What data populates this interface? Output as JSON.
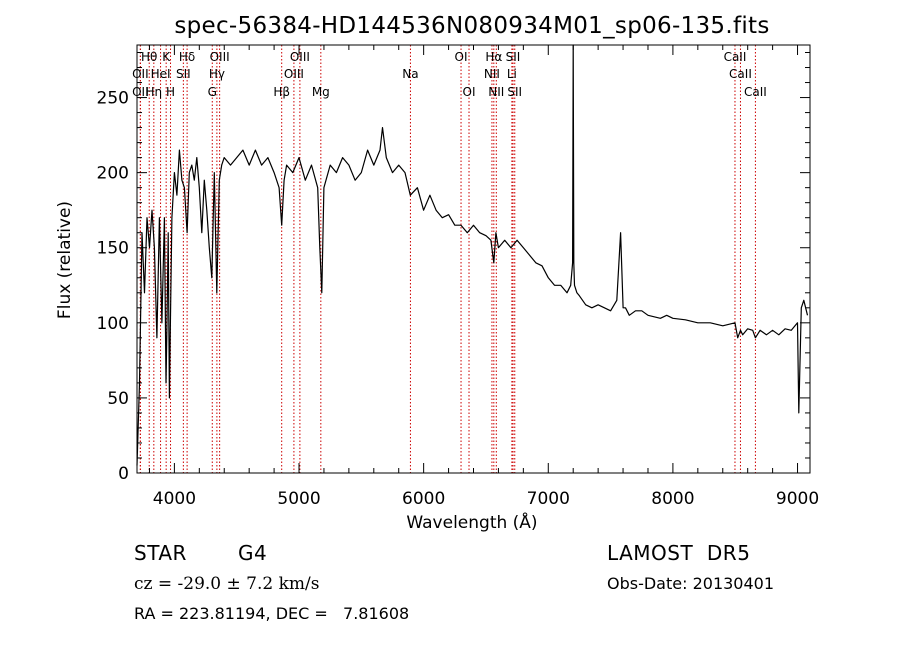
{
  "chart_data": {
    "type": "line",
    "title": "spec-56384-HD144536N080934M01_sp06-135.fits",
    "xlabel": "Wavelength (Å)",
    "ylabel": "Flux (relative)",
    "xlim": [
      3700,
      9100
    ],
    "ylim": [
      0,
      285
    ],
    "x_ticks": [
      4000,
      5000,
      6000,
      7000,
      8000,
      9000
    ],
    "y_ticks": [
      0,
      50,
      100,
      150,
      200,
      250
    ],
    "grid": false,
    "line_color": "#000000",
    "marker_color": "#cc0000",
    "series": [
      {
        "x": [
          3700,
          3720,
          3740,
          3760,
          3780,
          3800,
          3820,
          3840,
          3860,
          3880,
          3900,
          3920,
          3933,
          3940,
          3950,
          3960,
          3968,
          3980,
          4000,
          4020,
          4040,
          4060,
          4080,
          4102,
          4120,
          4140,
          4160,
          4180,
          4200,
          4220,
          4240,
          4260,
          4280,
          4300,
          4320,
          4340,
          4360,
          4380,
          4400,
          4450,
          4500,
          4550,
          4600,
          4650,
          4700,
          4750,
          4800,
          4840,
          4861,
          4880,
          4900,
          4950,
          5000,
          5050,
          5100,
          5150,
          5167,
          5183,
          5200,
          5250,
          5300,
          5350,
          5400,
          5450,
          5500,
          5550,
          5600,
          5650,
          5670,
          5700,
          5750,
          5800,
          5850,
          5893,
          5950,
          6000,
          6050,
          6100,
          6150,
          6200,
          6250,
          6300,
          6350,
          6400,
          6450,
          6500,
          6540,
          6563,
          6580,
          6600,
          6650,
          6700,
          6750,
          6800,
          6850,
          6900,
          6950,
          7000,
          7050,
          7100,
          7150,
          7180,
          7195,
          7200,
          7205,
          7210,
          7230,
          7250,
          7300,
          7350,
          7400,
          7450,
          7500,
          7550,
          7580,
          7600,
          7620,
          7650,
          7700,
          7750,
          7800,
          7850,
          7900,
          7950,
          8000,
          8100,
          8200,
          8300,
          8400,
          8498,
          8520,
          8542,
          8560,
          8600,
          8640,
          8662,
          8700,
          8750,
          8800,
          8850,
          8900,
          8950,
          9000,
          9010,
          9030,
          9050,
          9080
        ],
        "y": [
          5,
          60,
          160,
          120,
          170,
          150,
          175,
          150,
          90,
          170,
          100,
          170,
          60,
          95,
          160,
          50,
          100,
          170,
          200,
          185,
          215,
          195,
          190,
          160,
          200,
          205,
          195,
          210,
          190,
          160,
          195,
          175,
          150,
          130,
          200,
          120,
          195,
          205,
          210,
          205,
          210,
          215,
          205,
          215,
          205,
          210,
          200,
          190,
          165,
          195,
          205,
          200,
          210,
          195,
          205,
          190,
          150,
          120,
          190,
          205,
          200,
          210,
          205,
          195,
          200,
          215,
          205,
          215,
          230,
          210,
          200,
          205,
          200,
          185,
          190,
          175,
          185,
          175,
          170,
          172,
          165,
          165,
          160,
          165,
          160,
          158,
          155,
          140,
          160,
          150,
          155,
          150,
          155,
          150,
          145,
          140,
          138,
          130,
          125,
          125,
          120,
          125,
          140,
          285,
          140,
          125,
          120,
          118,
          112,
          110,
          112,
          110,
          108,
          115,
          160,
          110,
          110,
          105,
          108,
          108,
          105,
          104,
          103,
          105,
          103,
          102,
          100,
          100,
          98,
          100,
          90,
          95,
          92,
          96,
          95,
          90,
          95,
          92,
          95,
          92,
          96,
          95,
          100,
          40,
          110,
          115,
          105
        ]
      }
    ],
    "spectral_lines": [
      {
        "label": "OII",
        "wl": 3727,
        "row": 3
      },
      {
        "label": "OII",
        "wl": 3727,
        "row": 2
      },
      {
        "label": "Hθ",
        "wl": 3798,
        "row": 1
      },
      {
        "label": "Hη",
        "wl": 3835,
        "row": 3
      },
      {
        "label": "HeI",
        "wl": 3889,
        "row": 2
      },
      {
        "label": "K",
        "wl": 3934,
        "row": 1
      },
      {
        "label": "H",
        "wl": 3969,
        "row": 3
      },
      {
        "label": "Hδ",
        "wl": 4102,
        "row": 1
      },
      {
        "label": "SII",
        "wl": 4072,
        "row": 2
      },
      {
        "label": "G",
        "wl": 4304,
        "row": 3
      },
      {
        "label": "Hγ",
        "wl": 4341,
        "row": 2
      },
      {
        "label": "OIII",
        "wl": 4363,
        "row": 1
      },
      {
        "label": "Hβ",
        "wl": 4861,
        "row": 3
      },
      {
        "label": "OIII",
        "wl": 4959,
        "row": 2
      },
      {
        "label": "OIII",
        "wl": 5007,
        "row": 1
      },
      {
        "label": "Mg",
        "wl": 5175,
        "row": 3
      },
      {
        "label": "Na",
        "wl": 5894,
        "row": 2
      },
      {
        "label": "OI",
        "wl": 6300,
        "row": 1
      },
      {
        "label": "OI",
        "wl": 6364,
        "row": 3
      },
      {
        "label": "NII",
        "wl": 6548,
        "row": 2
      },
      {
        "label": "NII",
        "wl": 6583,
        "row": 3
      },
      {
        "label": "Hα",
        "wl": 6563,
        "row": 1
      },
      {
        "label": "SII",
        "wl": 6717,
        "row": 1
      },
      {
        "label": "Li",
        "wl": 6708,
        "row": 2
      },
      {
        "label": "SII",
        "wl": 6731,
        "row": 3
      },
      {
        "label": "CaII",
        "wl": 8498,
        "row": 1
      },
      {
        "label": "CaII",
        "wl": 8542,
        "row": 2
      },
      {
        "label": "CaII",
        "wl": 8662,
        "row": 3
      }
    ]
  },
  "info": {
    "object_class": "STAR",
    "subclass": "G4",
    "survey": "LAMOST  DR5",
    "cz": "cz = -29.0 ± 7.2 km/s",
    "obs_date": "Obs-Date: 20130401",
    "coords": "RA = 223.81194, DEC =   7.81608"
  }
}
